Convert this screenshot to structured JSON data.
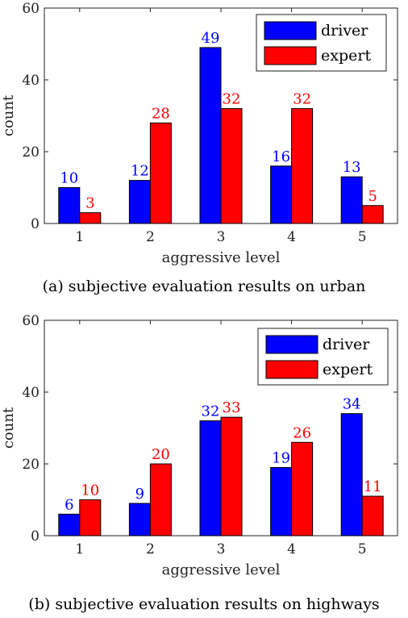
{
  "chart_data": [
    {
      "type": "bar",
      "caption": "(a) subjective evaluation results on urban",
      "categories": [
        "1",
        "2",
        "3",
        "4",
        "5"
      ],
      "series": [
        {
          "name": "driver",
          "values": [
            10,
            12,
            49,
            16,
            13
          ],
          "color": "#0000ff"
        },
        {
          "name": "expert",
          "values": [
            3,
            28,
            32,
            32,
            5
          ],
          "color": "#ff0000"
        }
      ],
      "xlabel": "aggressive level",
      "ylabel": "count",
      "ylim": [
        0,
        60
      ],
      "yticks": [
        0,
        20,
        40,
        60
      ],
      "legend_position": "top-right",
      "grid": false
    },
    {
      "type": "bar",
      "caption": "(b) subjective evaluation results on highways",
      "categories": [
        "1",
        "2",
        "3",
        "4",
        "5"
      ],
      "series": [
        {
          "name": "driver",
          "values": [
            6,
            9,
            32,
            19,
            34
          ],
          "color": "#0000ff"
        },
        {
          "name": "expert",
          "values": [
            10,
            20,
            33,
            26,
            11
          ],
          "color": "#ff0000"
        }
      ],
      "xlabel": "aggressive level",
      "ylabel": "count",
      "ylim": [
        0,
        60
      ],
      "yticks": [
        0,
        20,
        40,
        60
      ],
      "legend_position": "top-right",
      "grid": false
    }
  ]
}
